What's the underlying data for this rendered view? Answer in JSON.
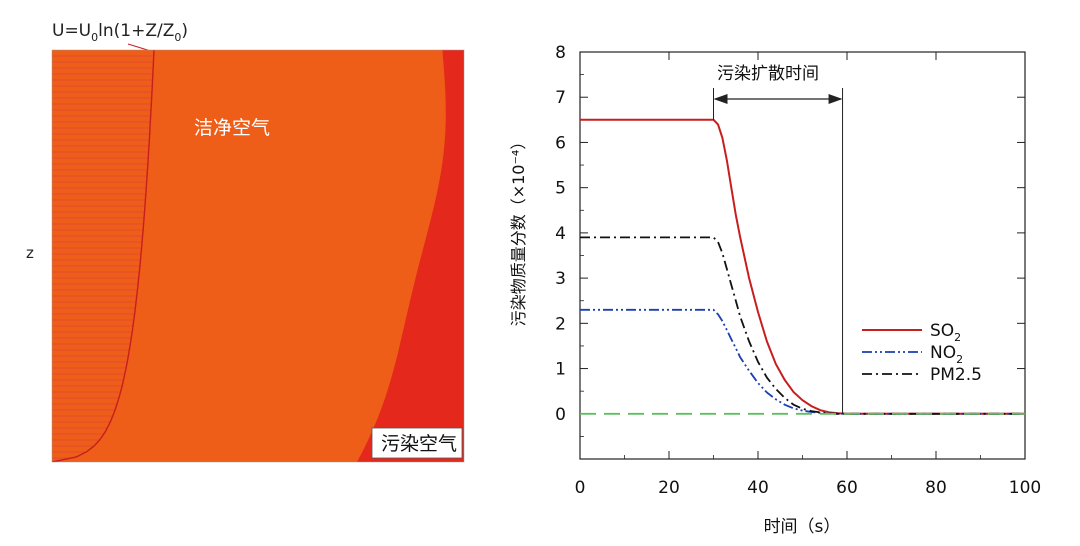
{
  "left_panel": {
    "formula": {
      "prefix": "U=U",
      "sub1": "0",
      "middle": "ln(1+Z/Z",
      "sub2": "0",
      "suffix": ")"
    },
    "z_axis_label": "z",
    "clean_air_label": "洁净空气",
    "polluted_air_label": "污染空气",
    "colors": [
      "#1f4aa0",
      "#2a63b8",
      "#3b8fd3",
      "#5ab8e2",
      "#7fd1c4",
      "#8fd36a",
      "#d6e23c",
      "#f6c11c",
      "#f39a1a",
      "#ee5e18",
      "#e5281c"
    ]
  },
  "chart_data": {
    "type": "line",
    "xlabel": "时间（s）",
    "ylabel": "污染物质量分数（×10⁻⁴）",
    "xlim": [
      0,
      100
    ],
    "ylim": [
      -1,
      8
    ],
    "xticks": [
      0,
      20,
      40,
      60,
      80,
      100
    ],
    "yticks": [
      0,
      1,
      2,
      3,
      4,
      5,
      6,
      7,
      8
    ],
    "grid": false,
    "legend_position": "right-middle",
    "annotation": {
      "text": "污染扩散时间",
      "x_start": 30,
      "x_end": 59
    },
    "series": [
      {
        "name": "SO2",
        "name_base": "SO",
        "name_sub": "2",
        "color": "#c81e1e",
        "dash": "solid",
        "x": [
          0,
          29,
          30,
          31,
          32,
          33,
          34,
          35,
          36,
          38,
          40,
          42,
          44,
          46,
          48,
          50,
          52,
          54,
          56,
          58,
          60,
          62,
          100
        ],
        "y": [
          6.5,
          6.5,
          6.5,
          6.4,
          6.1,
          5.6,
          5.0,
          4.4,
          3.9,
          3.0,
          2.25,
          1.6,
          1.1,
          0.75,
          0.48,
          0.3,
          0.17,
          0.08,
          0.03,
          0.01,
          0.0,
          0.0,
          0.0
        ]
      },
      {
        "name": "NO2",
        "name_base": "NO",
        "name_sub": "2",
        "color": "#1a3fb0",
        "dash": "dashdotdot",
        "x": [
          0,
          29,
          30,
          31,
          32,
          33,
          34,
          35,
          36,
          38,
          40,
          42,
          44,
          46,
          48,
          50,
          52,
          54,
          56,
          58,
          100
        ],
        "y": [
          2.3,
          2.3,
          2.3,
          2.2,
          2.05,
          1.85,
          1.65,
          1.45,
          1.25,
          0.95,
          0.68,
          0.47,
          0.32,
          0.2,
          0.12,
          0.07,
          0.04,
          0.02,
          0.01,
          0.0,
          0.0
        ]
      },
      {
        "name": "PM2.5",
        "color": "#111111",
        "dash": "dashdot",
        "x": [
          0,
          29,
          30,
          31,
          32,
          33,
          34,
          35,
          36,
          38,
          40,
          42,
          44,
          46,
          48,
          50,
          52,
          54,
          56,
          58,
          100
        ],
        "y": [
          3.9,
          3.9,
          3.9,
          3.8,
          3.55,
          3.2,
          2.85,
          2.5,
          2.15,
          1.6,
          1.15,
          0.8,
          0.55,
          0.35,
          0.2,
          0.11,
          0.06,
          0.03,
          0.01,
          0.0,
          0.0
        ]
      },
      {
        "color": "#5fbf5f",
        "dash": "longdash",
        "x": [
          0,
          100
        ],
        "y": [
          0,
          0
        ]
      }
    ]
  }
}
